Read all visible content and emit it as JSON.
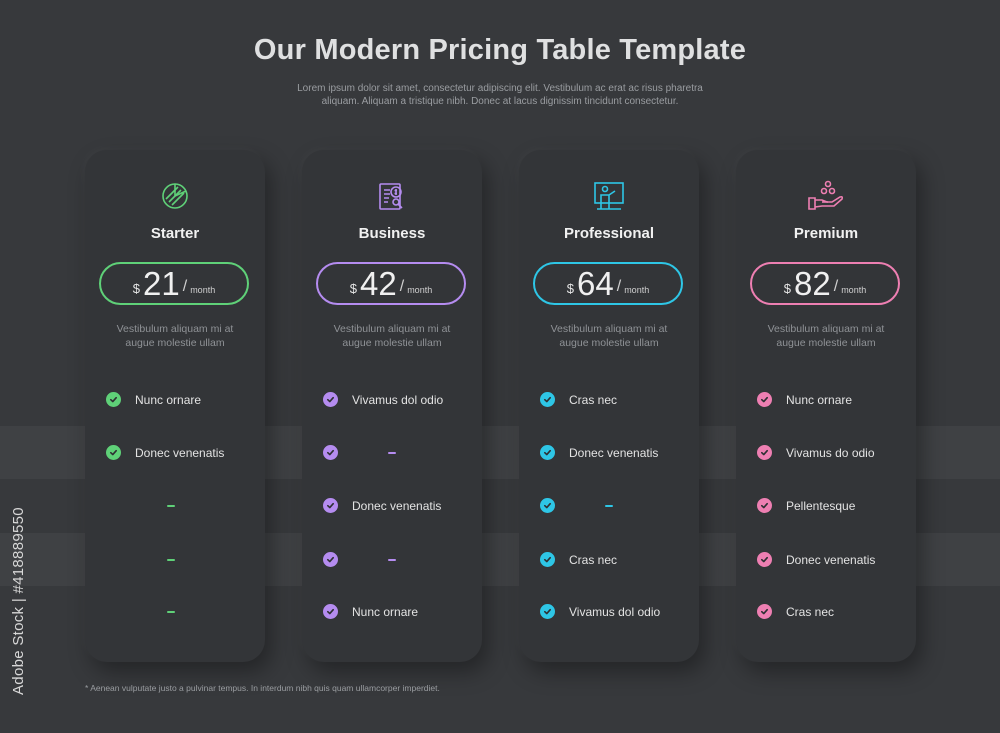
{
  "header": {
    "title": "Our Modern Pricing Table Template",
    "subtitle_line1": "Lorem ipsum dolor sit amet, consectetur adipiscing elit. Vestibulum ac erat ac risus pharetra",
    "subtitle_line2": "aliquam. Aliquam a tristique nibh. Donec at lacus dignissim tincidunt consectetur."
  },
  "plans": [
    {
      "name": "Starter",
      "currency": "$",
      "price": "21",
      "period": "month",
      "desc_line1": "Vestibulum aliquam mi at",
      "desc_line2": "augue molestie ullam",
      "accent": "#5fd178",
      "icon": "pie-chart-icon",
      "features": [
        {
          "included": true,
          "text": "Nunc ornare"
        },
        {
          "included": true,
          "text": "Donec venenatis"
        },
        {
          "included": false,
          "text": "–"
        },
        {
          "included": false,
          "text": "–"
        },
        {
          "included": false,
          "text": "–"
        }
      ]
    },
    {
      "name": "Business",
      "currency": "$",
      "price": "42",
      "period": "month",
      "desc_line1": "Vestibulum aliquam mi at",
      "desc_line2": "augue molestie ullam",
      "accent": "#b58cf0",
      "icon": "invoice-icon",
      "features": [
        {
          "included": true,
          "text": "Vivamus dol odio"
        },
        {
          "included": true,
          "text": "–"
        },
        {
          "included": true,
          "text": "Donec venenatis"
        },
        {
          "included": true,
          "text": "–"
        },
        {
          "included": true,
          "text": "Nunc ornare"
        }
      ]
    },
    {
      "name": "Professional",
      "currency": "$",
      "price": "64",
      "period": "month",
      "desc_line1": "Vestibulum aliquam mi at",
      "desc_line2": "augue molestie ullam",
      "accent": "#2ec6e6",
      "icon": "presentation-icon",
      "features": [
        {
          "included": true,
          "text": "Cras nec"
        },
        {
          "included": true,
          "text": "Donec venenatis"
        },
        {
          "included": true,
          "text": "–"
        },
        {
          "included": true,
          "text": "Cras nec"
        },
        {
          "included": true,
          "text": "Vivamus dol odio"
        }
      ]
    },
    {
      "name": "Premium",
      "currency": "$",
      "price": "82",
      "period": "month",
      "desc_line1": "Vestibulum aliquam mi at",
      "desc_line2": "augue molestie ullam",
      "accent": "#ee7fb2",
      "icon": "hand-coins-icon",
      "features": [
        {
          "included": true,
          "text": "Nunc ornare"
        },
        {
          "included": true,
          "text": "Vivamus do odio"
        },
        {
          "included": true,
          "text": "Pellentesque"
        },
        {
          "included": true,
          "text": "Donec venenatis"
        },
        {
          "included": true,
          "text": "Cras nec"
        }
      ]
    }
  ],
  "footnote": "* Aenean vulputate justo a pulvinar tempus. In interdum nibh quis quam ullamcorper imperdiet.",
  "watermark": "Adobe Stock | #418889550"
}
